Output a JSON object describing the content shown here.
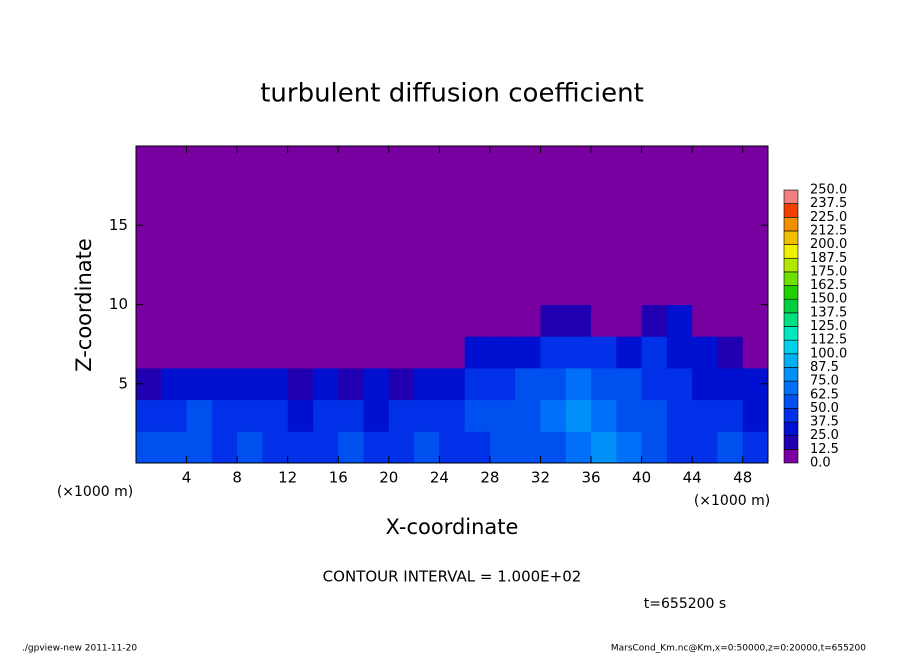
{
  "chart_data": {
    "type": "heatmap",
    "title": "turbulent diffusion coefficient",
    "xlabel": "X-coordinate",
    "ylabel": "Z-coordinate",
    "x_unit_left": "(×1000 m)",
    "x_unit_right": "(×1000 m)",
    "contour_interval": "CONTOUR INTERVAL = 1.000E+02",
    "time_label": "t=655200 s",
    "footer_left": "./gpview-new   2011-11-20",
    "footer_right": "MarsCond_Km.nc@Km,x=0:50000,z=0:20000,t=655200",
    "xlim": [
      0,
      50
    ],
    "ylim": [
      0,
      20
    ],
    "xticks": [
      4,
      8,
      12,
      16,
      20,
      24,
      28,
      32,
      36,
      40,
      44,
      48
    ],
    "yticks": [
      5,
      10,
      15
    ],
    "xbins": [
      0,
      2,
      4,
      6,
      8,
      10,
      12,
      14,
      16,
      18,
      20,
      22,
      24,
      26,
      28,
      30,
      32,
      34,
      36,
      38,
      40,
      42,
      44,
      46,
      48,
      50
    ],
    "zbins": [
      0,
      2,
      4,
      6,
      8,
      10,
      12,
      14,
      16,
      18,
      20
    ],
    "values": [
      [
        55,
        50,
        60,
        45,
        50,
        45,
        40,
        45,
        50,
        40,
        45,
        50,
        40,
        45,
        50,
        55,
        60,
        70,
        75,
        65,
        55,
        45,
        40,
        50,
        45
      ],
      [
        40,
        45,
        50,
        40,
        45,
        40,
        35,
        40,
        45,
        35,
        45,
        40,
        45,
        50,
        55,
        60,
        65,
        75,
        70,
        60,
        50,
        45,
        40,
        40,
        35
      ],
      [
        20,
        30,
        35,
        30,
        35,
        25,
        20,
        25,
        20,
        30,
        20,
        25,
        35,
        40,
        45,
        50,
        60,
        65,
        55,
        50,
        45,
        40,
        35,
        30,
        25
      ],
      [
        0,
        0,
        5,
        10,
        5,
        0,
        0,
        0,
        0,
        10,
        0,
        0,
        10,
        25,
        30,
        35,
        40,
        45,
        40,
        35,
        40,
        35,
        30,
        15,
        0
      ],
      [
        0,
        0,
        0,
        0,
        0,
        0,
        0,
        0,
        0,
        0,
        0,
        0,
        0,
        0,
        0,
        0,
        15,
        20,
        10,
        5,
        20,
        25,
        0,
        0,
        0
      ],
      [
        0,
        0,
        0,
        0,
        0,
        0,
        0,
        0,
        0,
        0,
        0,
        0,
        0,
        0,
        0,
        0,
        0,
        0,
        0,
        0,
        0,
        0,
        0,
        0,
        0
      ],
      [
        0,
        0,
        0,
        0,
        0,
        0,
        0,
        0,
        0,
        0,
        0,
        0,
        0,
        0,
        0,
        0,
        0,
        0,
        0,
        0,
        0,
        0,
        0,
        0,
        0
      ],
      [
        0,
        0,
        0,
        0,
        0,
        0,
        0,
        0,
        0,
        0,
        0,
        0,
        0,
        0,
        0,
        0,
        0,
        0,
        0,
        0,
        0,
        0,
        0,
        0,
        0
      ],
      [
        0,
        0,
        0,
        0,
        0,
        0,
        0,
        0,
        0,
        0,
        0,
        0,
        0,
        0,
        0,
        0,
        0,
        0,
        0,
        0,
        0,
        0,
        0,
        0,
        0
      ],
      [
        0,
        0,
        0,
        0,
        0,
        0,
        0,
        0,
        0,
        0,
        0,
        0,
        0,
        0,
        0,
        0,
        0,
        0,
        0,
        0,
        0,
        0,
        0,
        0,
        0
      ]
    ],
    "levels": [
      {
        "value": 0,
        "label": "0.0"
      },
      {
        "value": 12.5,
        "label": "12.5"
      },
      {
        "value": 25,
        "label": "25.0"
      },
      {
        "value": 37.5,
        "label": "37.5"
      },
      {
        "value": 50,
        "label": "50.0"
      },
      {
        "value": 62.5,
        "label": "62.5"
      },
      {
        "value": 75,
        "label": "75.0"
      },
      {
        "value": 87.5,
        "label": "87.5"
      },
      {
        "value": 100,
        "label": "100.0"
      },
      {
        "value": 112.5,
        "label": "112.5"
      },
      {
        "value": 125,
        "label": "125.0"
      },
      {
        "value": 137.5,
        "label": "137.5"
      },
      {
        "value": 150,
        "label": "150.0"
      },
      {
        "value": 162.5,
        "label": "162.5"
      },
      {
        "value": 175,
        "label": "175.0"
      },
      {
        "value": 187.5,
        "label": "187.5"
      },
      {
        "value": 200,
        "label": "200.0"
      },
      {
        "value": 212.5,
        "label": "212.5"
      },
      {
        "value": 225,
        "label": "225.0"
      },
      {
        "value": 237.5,
        "label": "237.5"
      },
      {
        "value": 250,
        "label": "250.0"
      }
    ],
    "colors": [
      "#7800a0",
      "#2000b0",
      "#0010d0",
      "#0030e8",
      "#0050f0",
      "#0070f8",
      "#0090f8",
      "#00b0f0",
      "#00d0e8",
      "#00e8c0",
      "#00e080",
      "#00d040",
      "#20d000",
      "#70e000",
      "#b0e800",
      "#f0f000",
      "#f0c000",
      "#f09000",
      "#f04000",
      "#f08080"
    ]
  }
}
